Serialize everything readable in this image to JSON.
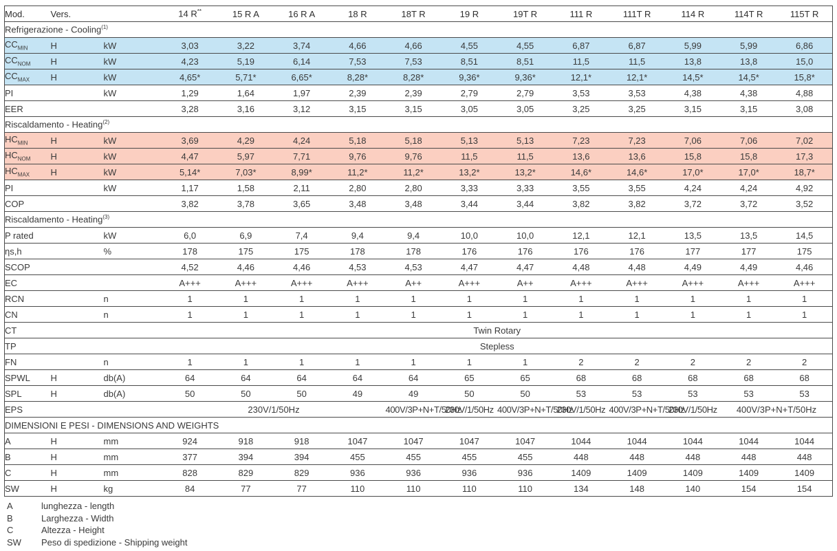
{
  "colors": {
    "cooling_row": "#c5e4f4",
    "heating_row": "#fbcfc1",
    "text": "#3a3a3a",
    "border": "#4a4a4a"
  },
  "table": {
    "header": {
      "mod": "Mod.",
      "vers": "Vers.",
      "unit": "",
      "models": [
        {
          "text": "14 R",
          "sup": "**"
        },
        {
          "text": "15 R A"
        },
        {
          "text": "16 R A"
        },
        {
          "text": "18 R"
        },
        {
          "text": "18T R"
        },
        {
          "text": "19 R"
        },
        {
          "text": "19T R"
        },
        {
          "text": "111 R"
        },
        {
          "text": "111T R"
        },
        {
          "text": "114 R"
        },
        {
          "text": "114T R"
        },
        {
          "text": "115T R"
        }
      ]
    },
    "rows": [
      {
        "type": "section",
        "label": "Refrigerazione - Cooling",
        "sup": "(1)"
      },
      {
        "type": "data",
        "label": "CC",
        "sub": "MIN",
        "vers": "H",
        "unit": "kW",
        "bg": "cooling_row",
        "values": [
          "3,03",
          "3,22",
          "3,74",
          "4,66",
          "4,66",
          "4,55",
          "4,55",
          "6,87",
          "6,87",
          "5,99",
          "5,99",
          "6,86"
        ]
      },
      {
        "type": "data",
        "label": "CC",
        "sub": "NOM",
        "vers": "H",
        "unit": "kW",
        "bg": "cooling_row",
        "values": [
          "4,23",
          "5,19",
          "6,14",
          "7,53",
          "7,53",
          "8,51",
          "8,51",
          "11,5",
          "11,5",
          "13,8",
          "13,8",
          "15,0"
        ]
      },
      {
        "type": "data",
        "label": "CC",
        "sub": "MAX",
        "vers": "H",
        "unit": "kW",
        "bg": "cooling_row",
        "values": [
          "4,65*",
          "5,71*",
          "6,65*",
          "8,28*",
          "8,28*",
          "9,36*",
          "9,36*",
          "12,1*",
          "12,1*",
          "14,5*",
          "14,5*",
          "15,8*"
        ]
      },
      {
        "type": "data",
        "label": "PI",
        "vers": "",
        "unit": "kW",
        "values": [
          "1,29",
          "1,64",
          "1,97",
          "2,39",
          "2,39",
          "2,79",
          "2,79",
          "3,53",
          "3,53",
          "4,38",
          "4,38",
          "4,88"
        ]
      },
      {
        "type": "data",
        "label": "EER",
        "vers": "",
        "unit": "",
        "values": [
          "3,28",
          "3,16",
          "3,12",
          "3,15",
          "3,15",
          "3,05",
          "3,05",
          "3,25",
          "3,25",
          "3,15",
          "3,15",
          "3,08"
        ]
      },
      {
        "type": "section",
        "label": "Riscaldamento - Heating",
        "sup": "(2)"
      },
      {
        "type": "data",
        "label": "HC",
        "sub": "MIN",
        "vers": "H",
        "unit": "kW",
        "bg": "heating_row",
        "values": [
          "3,69",
          "4,29",
          "4,24",
          "5,18",
          "5,18",
          "5,13",
          "5,13",
          "7,23",
          "7,23",
          "7,06",
          "7,06",
          "7,02"
        ]
      },
      {
        "type": "data",
        "label": "HC",
        "sub": "NOM",
        "vers": "H",
        "unit": "kW",
        "bg": "heating_row",
        "values": [
          "4,47",
          "5,97",
          "7,71",
          "9,76",
          "9,76",
          "11,5",
          "11,5",
          "13,6",
          "13,6",
          "15,8",
          "15,8",
          "17,3"
        ]
      },
      {
        "type": "data",
        "label": "HC",
        "sub": "MAX",
        "vers": "H",
        "unit": "kW",
        "bg": "heating_row",
        "values": [
          "5,14*",
          "7,03*",
          "8,99*",
          "11,2*",
          "11,2*",
          "13,2*",
          "13,2*",
          "14,6*",
          "14,6*",
          "17,0*",
          "17,0*",
          "18,7*"
        ]
      },
      {
        "type": "data",
        "label": "PI",
        "vers": "",
        "unit": "kW",
        "values": [
          "1,17",
          "1,58",
          "2,11",
          "2,80",
          "2,80",
          "3,33",
          "3,33",
          "3,55",
          "3,55",
          "4,24",
          "4,24",
          "4,92"
        ]
      },
      {
        "type": "data",
        "label": "COP",
        "vers": "",
        "unit": "",
        "values": [
          "3,82",
          "3,78",
          "3,65",
          "3,48",
          "3,48",
          "3,44",
          "3,44",
          "3,82",
          "3,82",
          "3,72",
          "3,72",
          "3,52"
        ]
      },
      {
        "type": "section",
        "label": "Riscaldamento - Heating",
        "sup": "(3)"
      },
      {
        "type": "data",
        "label": "P rated",
        "vers": "",
        "unit": "kW",
        "values": [
          "6,0",
          "6,9",
          "7,4",
          "9,4",
          "9,4",
          "10,0",
          "10,0",
          "12,1",
          "12,1",
          "13,5",
          "13,5",
          "14,5"
        ]
      },
      {
        "type": "data",
        "label": "ηs,h",
        "vers": "",
        "unit": "%",
        "values": [
          "178",
          "175",
          "175",
          "178",
          "178",
          "176",
          "176",
          "176",
          "176",
          "177",
          "177",
          "175"
        ]
      },
      {
        "type": "data",
        "label": "SCOP",
        "vers": "",
        "unit": "",
        "values": [
          "4,52",
          "4,46",
          "4,46",
          "4,53",
          "4,53",
          "4,47",
          "4,47",
          "4,48",
          "4,48",
          "4,49",
          "4,49",
          "4,46"
        ]
      },
      {
        "type": "data",
        "label": "EC",
        "vers": "",
        "unit": "",
        "values": [
          "A+++",
          "A+++",
          "A+++",
          "A+++",
          "A++",
          "A+++",
          "A++",
          "A+++",
          "A+++",
          "A+++",
          "A+++",
          "A+++"
        ]
      },
      {
        "type": "data",
        "label": "RCN",
        "vers": "",
        "unit": "n",
        "values": [
          "1",
          "1",
          "1",
          "1",
          "1",
          "1",
          "1",
          "1",
          "1",
          "1",
          "1",
          "1"
        ]
      },
      {
        "type": "data",
        "label": "CN",
        "vers": "",
        "unit": "n",
        "values": [
          "1",
          "1",
          "1",
          "1",
          "1",
          "1",
          "1",
          "1",
          "1",
          "1",
          "1",
          "1"
        ]
      },
      {
        "type": "span",
        "label": "CT",
        "vers": "",
        "unit": "",
        "value": "Twin Rotary"
      },
      {
        "type": "span",
        "label": "TP",
        "vers": "",
        "unit": "",
        "value": "Stepless"
      },
      {
        "type": "data",
        "label": "FN",
        "vers": "",
        "unit": "n",
        "values": [
          "1",
          "1",
          "1",
          "1",
          "1",
          "1",
          "1",
          "2",
          "2",
          "2",
          "2",
          "2"
        ]
      },
      {
        "type": "data",
        "label": "SPWL",
        "vers": "H",
        "unit": "db(A)",
        "values": [
          "64",
          "64",
          "64",
          "64",
          "64",
          "65",
          "65",
          "68",
          "68",
          "68",
          "68",
          "68"
        ]
      },
      {
        "type": "data",
        "label": "SPL",
        "vers": "H",
        "unit": "db(A)",
        "values": [
          "50",
          "50",
          "50",
          "49",
          "49",
          "50",
          "50",
          "53",
          "53",
          "53",
          "53",
          "53"
        ]
      },
      {
        "type": "eps",
        "label": "EPS",
        "vers": "",
        "unit": "",
        "cells": [
          {
            "text": "230V/1/50Hz",
            "span": 4,
            "small": false
          },
          {
            "text": "400V/3P+N+T/50Hz",
            "span": 1,
            "small": true
          },
          {
            "text": "230V/1/50Hz",
            "span": 1,
            "small": true
          },
          {
            "text": "400V/3P+N+T/50Hz",
            "span": 1,
            "small": true
          },
          {
            "text": "230V/1/50Hz",
            "span": 1,
            "small": true
          },
          {
            "text": "400V/3P+N+T/50Hz",
            "span": 1,
            "small": true
          },
          {
            "text": "230V/1/50Hz",
            "span": 1,
            "small": true
          },
          {
            "text": "400V/3P+N+T/50Hz",
            "span": 2,
            "small": false
          }
        ]
      },
      {
        "type": "section",
        "label": "DIMENSIONI E PESI - DIMENSIONS AND WEIGHTS",
        "sup": ""
      },
      {
        "type": "data",
        "label": "A",
        "vers": "H",
        "unit": "mm",
        "values": [
          "924",
          "918",
          "918",
          "1047",
          "1047",
          "1047",
          "1047",
          "1044",
          "1044",
          "1044",
          "1044",
          "1044"
        ]
      },
      {
        "type": "data",
        "label": "B",
        "vers": "H",
        "unit": "mm",
        "values": [
          "377",
          "394",
          "394",
          "455",
          "455",
          "455",
          "455",
          "448",
          "448",
          "448",
          "448",
          "448"
        ]
      },
      {
        "type": "data",
        "label": "C",
        "vers": "H",
        "unit": "mm",
        "values": [
          "828",
          "829",
          "829",
          "936",
          "936",
          "936",
          "936",
          "1409",
          "1409",
          "1409",
          "1409",
          "1409"
        ]
      },
      {
        "type": "data",
        "label": "SW",
        "vers": "H",
        "unit": "kg",
        "values": [
          "84",
          "77",
          "77",
          "110",
          "110",
          "110",
          "110",
          "134",
          "148",
          "140",
          "154",
          "154"
        ]
      }
    ]
  },
  "legend": [
    {
      "key": "A",
      "desc": "lunghezza - length"
    },
    {
      "key": "B",
      "desc": "Larghezza - Width"
    },
    {
      "key": "C",
      "desc": "Altezza - Height"
    },
    {
      "key": "SW",
      "desc": "Peso di spedizione - Shipping weight"
    }
  ]
}
